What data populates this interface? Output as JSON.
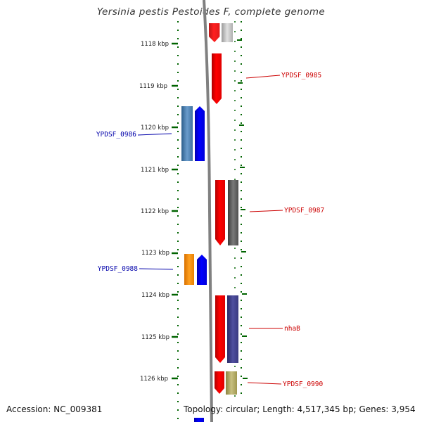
{
  "title": "Yersinia pestis Pestoides F, complete genome",
  "footer": {
    "accession": "Accession: NC_009381",
    "topology": "Topology: circular; Length: 4,517,345 bp; Genes: 3,954"
  },
  "scale_ticks": [
    "1118 kbp",
    "1119 kbp",
    "1120 kbp",
    "1121 kbp",
    "1122 kbp",
    "1123 kbp",
    "1124 kbp",
    "1125 kbp",
    "1126 kbp"
  ],
  "gene_labels": {
    "forward": [
      "YPDSF_0985",
      "YPDSF_0987",
      "nhaB",
      "YPDSF_0990"
    ],
    "reverse": [
      "YPDSF_0986",
      "YPDSF_0988"
    ]
  },
  "colors": {
    "backbone": "#808080",
    "forward_gene": "#ff0000",
    "reverse_gene": "#0000ff",
    "tick": "#006400",
    "forward_label": "#cc0000",
    "reverse_label": "#0000aa"
  }
}
